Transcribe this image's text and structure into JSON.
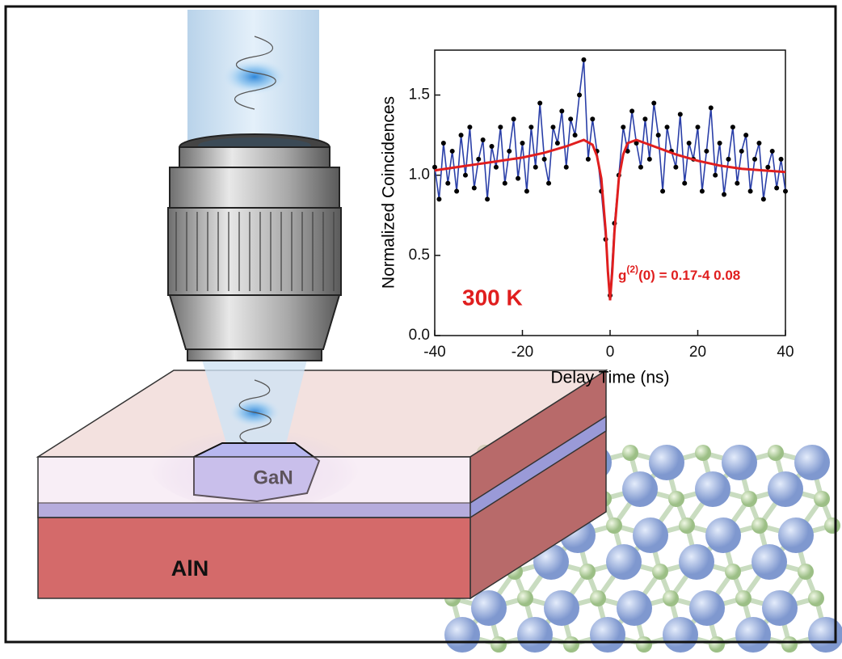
{
  "illustration": {
    "crystal_label": "GaN",
    "substrate_label": "AlN"
  },
  "chart_data": {
    "type": "line",
    "x_label": "Delay Time (ns)",
    "y_label": "Normalized Coincidences",
    "annotations": {
      "temperature": "300 K",
      "g2": {
        "base": "g",
        "sup": "(2)",
        "rest": "(0)  = 0.17-4 0.08"
      }
    },
    "xlim": [
      -40,
      40
    ],
    "xticks": [
      -40,
      -20,
      0,
      20,
      40
    ],
    "ylim": [
      0,
      1.78
    ],
    "yticks": [
      {
        "value": 0,
        "label": "0.0"
      },
      0.5,
      {
        "value": 1,
        "label": "1.0"
      },
      1.5
    ],
    "series": [
      {
        "color": "#2a3fa8",
        "marker_color": "#000000",
        "x": [
          -40,
          -39,
          -38,
          -37,
          -36,
          -35,
          -34,
          -33,
          -32,
          -31,
          -30,
          -29,
          -28,
          -27,
          -26,
          -25,
          -24,
          -23,
          -22,
          -21,
          -20,
          -19,
          -18,
          -17,
          -16,
          -15,
          -14,
          -13,
          -12,
          -11,
          -10,
          -9,
          -8,
          -7,
          -6,
          -5,
          -4,
          -3,
          -2,
          -1,
          0,
          1,
          2,
          3,
          4,
          5,
          6,
          7,
          8,
          9,
          10,
          11,
          12,
          13,
          14,
          15,
          16,
          17,
          18,
          19,
          20,
          21,
          22,
          23,
          24,
          25,
          26,
          27,
          28,
          29,
          30,
          31,
          32,
          33,
          34,
          35,
          36,
          37,
          38,
          39,
          40
        ],
        "values": [
          1.05,
          0.85,
          1.2,
          0.95,
          1.15,
          0.9,
          1.25,
          1.0,
          1.3,
          0.92,
          1.1,
          1.22,
          0.85,
          1.18,
          1.05,
          1.3,
          0.95,
          1.15,
          1.35,
          0.98,
          1.2,
          0.9,
          1.3,
          1.05,
          1.45,
          1.1,
          0.95,
          1.3,
          1.2,
          1.4,
          1.05,
          1.35,
          1.25,
          1.5,
          1.72,
          1.1,
          1.35,
          1.15,
          0.9,
          0.6,
          0.25,
          0.7,
          1.0,
          1.3,
          1.15,
          1.4,
          1.2,
          1.05,
          1.35,
          1.1,
          1.45,
          1.25,
          0.9,
          1.3,
          1.15,
          1.05,
          1.38,
          0.95,
          1.2,
          1.1,
          1.3,
          0.9,
          1.15,
          1.42,
          1.0,
          1.2,
          0.88,
          1.1,
          1.3,
          0.95,
          1.15,
          1.25,
          0.9,
          1.1,
          1.2,
          0.85,
          1.05,
          1.15,
          0.92,
          1.1,
          0.9
        ]
      },
      {
        "color": "#e01e1e",
        "x": [
          -40,
          -35,
          -30,
          -25,
          -20,
          -15,
          -10,
          -8,
          -6,
          -4,
          -3,
          -2,
          -1,
          -0.5,
          0,
          0.5,
          1,
          2,
          3,
          4,
          6,
          8,
          10,
          15,
          20,
          25,
          30,
          35,
          40
        ],
        "values": [
          1.03,
          1.05,
          1.07,
          1.09,
          1.11,
          1.14,
          1.18,
          1.2,
          1.22,
          1.19,
          1.12,
          0.98,
          0.65,
          0.4,
          0.22,
          0.4,
          0.65,
          0.98,
          1.13,
          1.2,
          1.22,
          1.2,
          1.18,
          1.13,
          1.09,
          1.06,
          1.04,
          1.03,
          1.02
        ]
      }
    ]
  }
}
